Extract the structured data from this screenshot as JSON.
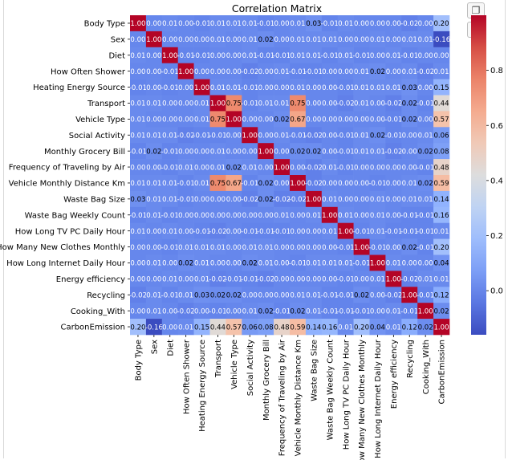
{
  "toolbar": {
    "copy_icon": "copy-icon",
    "save_icon": "save-icon"
  },
  "chart_data": {
    "type": "heatmap",
    "title": "Correlation Matrix",
    "labels": [
      "Body Type",
      "Sex",
      "Diet",
      "How Often Shower",
      "Heating Energy Source",
      "Transport",
      "Vehicle Type",
      "Social Activity",
      "Monthly Grocery Bill",
      "Frequency of Traveling by Air",
      "Vehicle Monthly Distance Km",
      "Waste Bag Size",
      "Waste Bag Weekly Count",
      "How Long TV PC Daily Hour",
      "How Many New Clothes Monthly",
      "How Long Internet Daily Hour",
      "Energy efficiency",
      "Recycling",
      "Cooking_With",
      "CarbonEmission"
    ],
    "matrix": [
      [
        1.0,
        -0.0,
        0.01,
        -0.0,
        -0.01,
        0.01,
        0.01,
        0.01,
        -0.01,
        -0.0,
        0.01,
        0.03,
        -0.01,
        0.01,
        -0.0,
        -0.0,
        0.0,
        -0.02,
        0.0,
        0.2
      ],
      [
        -0.0,
        1.0,
        0.0,
        -0.0,
        -0.0,
        0.01,
        -0.0,
        0.01,
        0.02,
        -0.0,
        0.01,
        0.01,
        0.01,
        -0.0,
        -0.0,
        0.01,
        -0.0,
        0.01,
        0.01,
        -0.16
      ],
      [
        0.01,
        0.0,
        1.0,
        -0.01,
        -0.01,
        0.0,
        0.0,
        0.01,
        -0.01,
        -0.01,
        0.01,
        0.01,
        -0.01,
        0.01,
        -0.01,
        0.0,
        0.01,
        -0.01,
        -0.0,
        0.0
      ],
      [
        -0.0,
        -0.0,
        -0.01,
        1.0,
        -0.0,
        -0.0,
        -0.0,
        -0.02,
        -0.0,
        0.01,
        -0.01,
        -0.01,
        0.0,
        -0.0,
        0.01,
        0.02,
        -0.0,
        0.01,
        -0.02,
        0.01
      ],
      [
        -0.01,
        -0.0,
        -0.01,
        -0.0,
        1.0,
        0.01,
        0.01,
        -0.01,
        -0.0,
        -0.0,
        0.01,
        -0.0,
        -0.0,
        -0.01,
        0.01,
        0.01,
        0.01,
        0.03,
        -0.0,
        0.15
      ],
      [
        0.01,
        0.01,
        0.0,
        -0.0,
        0.01,
        1.0,
        0.75,
        -0.01,
        0.01,
        0.01,
        0.75,
        0.0,
        -0.0,
        -0.02,
        0.01,
        -0.0,
        -0.02,
        0.02,
        -0.01,
        0.44
      ],
      [
        0.01,
        -0.0,
        0.0,
        -0.0,
        0.01,
        0.75,
        1.0,
        -0.0,
        -0.0,
        0.02,
        0.67,
        -0.0,
        0.0,
        -0.0,
        -0.0,
        -0.0,
        -0.01,
        0.02,
        -0.0,
        0.57
      ],
      [
        0.01,
        0.01,
        0.01,
        -0.02,
        -0.01,
        -0.01,
        -0.0,
        1.0,
        -0.0,
        0.01,
        -0.01,
        -0.02,
        -0.0,
        -0.01,
        0.01,
        0.02,
        -0.01,
        0.0,
        0.01,
        0.06
      ],
      [
        -0.01,
        0.02,
        -0.01,
        -0.0,
        -0.0,
        0.01,
        -0.0,
        -0.0,
        1.0,
        -0.0,
        0.02,
        0.02,
        -0.0,
        -0.01,
        0.01,
        0.01,
        -0.02,
        -0.0,
        0.02,
        0.08
      ],
      [
        -0.0,
        -0.0,
        -0.01,
        0.01,
        -0.0,
        0.01,
        0.02,
        0.01,
        -0.0,
        1.0,
        -0.0,
        -0.02,
        0.01,
        -0.01,
        -0.0,
        0.0,
        0.0,
        -0.0,
        -0.01,
        0.48
      ],
      [
        0.01,
        0.01,
        0.01,
        -0.01,
        0.01,
        0.75,
        0.67,
        -0.01,
        0.02,
        -0.0,
        1.0,
        -0.02,
        -0.0,
        -0.0,
        -0.0,
        -0.01,
        -0.0,
        0.01,
        0.02,
        0.59
      ],
      [
        0.03,
        0.01,
        0.01,
        -0.01,
        -0.0,
        0.0,
        -0.0,
        -0.02,
        0.02,
        -0.02,
        -0.02,
        1.0,
        0.01,
        0.0,
        -0.0,
        0.01,
        -0.0,
        0.01,
        0.01,
        0.14
      ],
      [
        -0.01,
        0.01,
        -0.01,
        0.0,
        -0.0,
        -0.0,
        0.0,
        -0.0,
        -0.0,
        0.01,
        -0.0,
        0.01,
        1.0,
        0.01,
        -0.0,
        0.01,
        0.0,
        -0.01,
        -0.01,
        0.16
      ],
      [
        0.01,
        -0.0,
        0.01,
        -0.0,
        -0.01,
        -0.02,
        -0.0,
        -0.01,
        -0.01,
        -0.01,
        -0.0,
        0.0,
        0.01,
        1.0,
        -0.01,
        0.01,
        -0.01,
        -0.01,
        -0.01,
        0.01
      ],
      [
        -0.0,
        -0.0,
        -0.01,
        0.01,
        0.01,
        0.01,
        -0.0,
        0.01,
        0.01,
        -0.0,
        -0.0,
        -0.0,
        -0.0,
        -0.01,
        1.0,
        -0.01,
        -0.0,
        0.02,
        -0.01,
        0.2
      ],
      [
        -0.0,
        0.01,
        0.0,
        0.02,
        0.01,
        -0.0,
        -0.0,
        0.02,
        0.01,
        0.0,
        -0.01,
        0.01,
        0.01,
        0.01,
        -0.01,
        1.0,
        0.01,
        -0.0,
        0.0,
        0.04
      ],
      [
        0.0,
        -0.0,
        0.01,
        -0.0,
        0.01,
        -0.02,
        -0.01,
        -0.01,
        -0.02,
        0.0,
        -0.0,
        -0.0,
        0.0,
        -0.01,
        -0.0,
        0.01,
        1.0,
        -0.02,
        0.01,
        0.01
      ],
      [
        -0.02,
        0.01,
        -0.01,
        0.01,
        0.03,
        0.02,
        0.02,
        0.0,
        -0.0,
        -0.0,
        0.01,
        0.01,
        -0.01,
        -0.01,
        0.02,
        -0.0,
        -0.02,
        1.0,
        -0.01,
        0.12
      ],
      [
        0.0,
        0.01,
        -0.0,
        -0.02,
        -0.0,
        -0.01,
        -0.0,
        0.01,
        0.02,
        -0.01,
        0.02,
        0.01,
        -0.01,
        -0.01,
        -0.01,
        0.0,
        0.01,
        -0.01,
        1.0,
        0.02
      ],
      [
        0.2,
        -0.16,
        0.0,
        0.01,
        0.15,
        0.44,
        0.57,
        0.06,
        0.08,
        0.48,
        0.59,
        0.14,
        0.16,
        0.01,
        0.2,
        0.04,
        0.01,
        0.12,
        0.02,
        1.0
      ]
    ],
    "colorbar": {
      "colormap": "coolwarm",
      "vmin": -0.16,
      "vmax": 1.0,
      "ticks": [
        0.0,
        0.2,
        0.4,
        0.6,
        0.8
      ]
    }
  }
}
